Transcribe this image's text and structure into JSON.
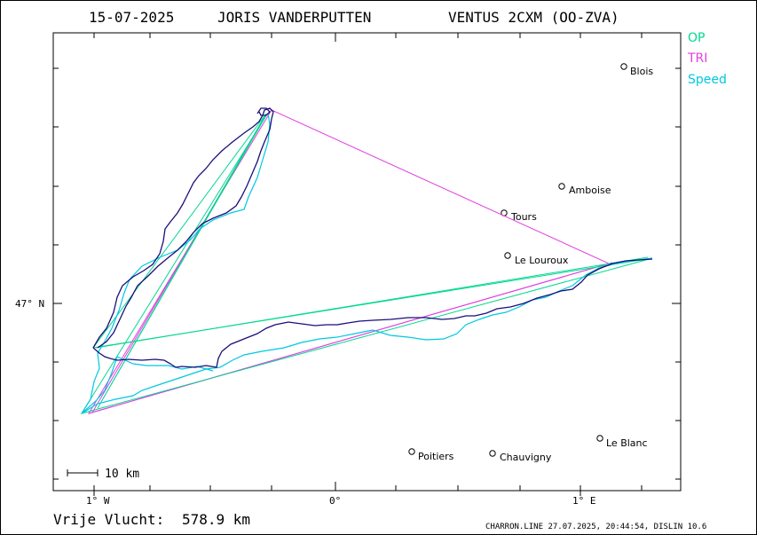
{
  "header": {
    "date": "15-07-2025",
    "pilot": "JORIS VANDERPUTTEN",
    "glider": "VENTUS 2CXM (OO-ZVA)"
  },
  "legend": [
    {
      "label": "OP",
      "color": "#00d890"
    },
    {
      "label": "TRI",
      "color": "#e040e0"
    },
    {
      "label": "Speed",
      "color": "#00c8e0"
    }
  ],
  "axes": {
    "x_ticks": [
      "1° W",
      "0°",
      "1° E"
    ],
    "y_ticks": [
      "47° N"
    ]
  },
  "scale": {
    "label": "10 km"
  },
  "cities": [
    {
      "name": "Blois"
    },
    {
      "name": "Amboise"
    },
    {
      "name": "Tours"
    },
    {
      "name": "Le Louroux"
    },
    {
      "name": "Le Blanc"
    },
    {
      "name": "Poitiers"
    },
    {
      "name": "Chauvigny"
    }
  ],
  "summary": {
    "distance_label": "Vrije Vlucht:",
    "distance_value": "578.9 km"
  },
  "footer": {
    "text": "CHARRON.LINE 27.07.2025, 20:44:54, DISLIN 10.6"
  },
  "colors": {
    "track": "#1a0f7a",
    "op": "#00d890",
    "tri": "#e040e0",
    "speed": "#00c8e0"
  }
}
